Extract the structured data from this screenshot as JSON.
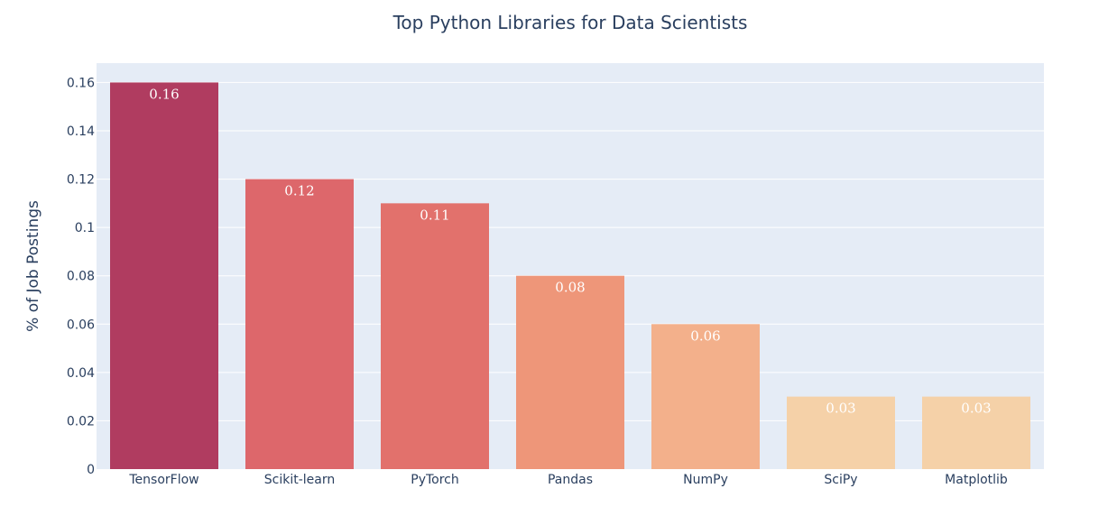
{
  "chart_data": {
    "type": "bar",
    "title": "Top Python Libraries for Data Scientists",
    "xlabel": "",
    "ylabel": "% of Job Postings",
    "categories": [
      "TensorFlow",
      "Scikit-learn",
      "PyTorch",
      "Pandas",
      "NumPy",
      "SciPy",
      "Matplotlib"
    ],
    "values": [
      0.16,
      0.12,
      0.11,
      0.08,
      0.06,
      0.03,
      0.03
    ],
    "data_labels": [
      "0.16",
      "0.12",
      "0.11",
      "0.08",
      "0.06",
      "0.03",
      "0.03"
    ],
    "ylim": [
      0,
      0.168
    ],
    "yticks": [
      0,
      0.02,
      0.04,
      0.06,
      0.08,
      0.1,
      0.12,
      0.14,
      0.16
    ],
    "ytick_labels": [
      "0",
      "0.02",
      "0.04",
      "0.06",
      "0.08",
      "0.1",
      "0.12",
      "0.14",
      "0.16"
    ],
    "grid": true,
    "legend": false,
    "colors": {
      "plot_background": "#e5ecf6",
      "gridline": "#ffffff",
      "text": "#2a3f5f",
      "bars": [
        "#b03c60",
        "#dd676b",
        "#e2716c",
        "#ee9679",
        "#f3b08b",
        "#f5d1a8",
        "#f5d1a8"
      ]
    }
  }
}
